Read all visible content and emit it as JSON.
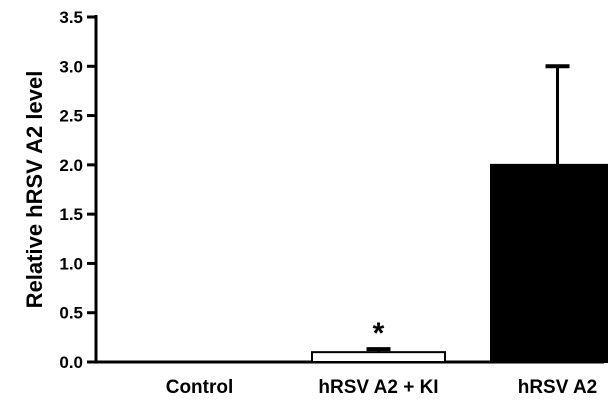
{
  "chart_data": {
    "type": "bar",
    "title": "",
    "xlabel": "",
    "ylabel": "Relative hRSV A2 level",
    "ylim": [
      0,
      3.5
    ],
    "yticks": [
      0.0,
      0.5,
      1.0,
      1.5,
      2.0,
      2.5,
      3.0,
      3.5
    ],
    "ytick_labels": [
      "0.0",
      "0.5",
      "1.0",
      "1.5",
      "2.0",
      "2.5",
      "3.0",
      "3.5"
    ],
    "categories": [
      "Control",
      "hRSV A2 + KI",
      "hRSV A2"
    ],
    "values": [
      0.0,
      0.1,
      2.0
    ],
    "error_upper": [
      0.0,
      0.03,
      1.0
    ],
    "bar_fill": [
      "#ffffff",
      "#ffffff",
      "#000000"
    ],
    "annotations": [
      {
        "category": "hRSV A2 + KI",
        "text": "*"
      }
    ],
    "grid": false,
    "legend": "none"
  }
}
